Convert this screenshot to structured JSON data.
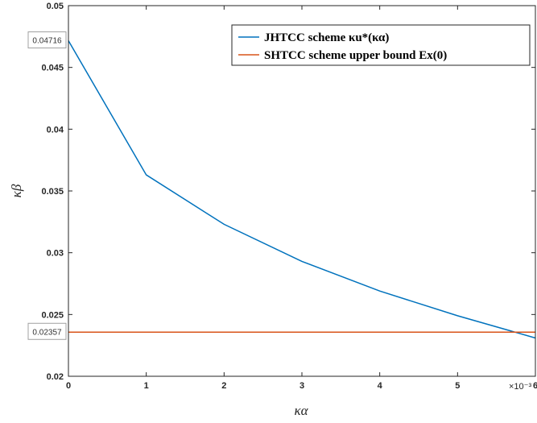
{
  "chart_data": {
    "type": "line",
    "xlabel": "κα",
    "ylabel": "κβ",
    "x_exponent_label": "×10⁻³",
    "xlim": [
      0,
      0.006
    ],
    "ylim": [
      0.02,
      0.05
    ],
    "xticks": [
      0,
      0.001,
      0.002,
      0.003,
      0.004,
      0.005,
      0.006
    ],
    "xtick_labels": [
      "0",
      "1",
      "2",
      "3",
      "4",
      "5",
      "6"
    ],
    "yticks": [
      0.02,
      0.025,
      0.03,
      0.035,
      0.04,
      0.045,
      0.05
    ],
    "ytick_labels": [
      "0.02",
      "0.025",
      "0.03",
      "0.035",
      "0.04",
      "0.045",
      "0.05"
    ],
    "grid": false,
    "legend_position": "top-right",
    "series": [
      {
        "name": "JHTCC scheme κu*(κα)",
        "color": "#0072BD",
        "x": [
          0,
          0.001,
          0.002,
          0.003,
          0.004,
          0.005,
          0.006
        ],
        "y": [
          0.04716,
          0.0363,
          0.0323,
          0.0293,
          0.0269,
          0.0249,
          0.0231
        ]
      },
      {
        "name": "SHTCC scheme upper bound Ex(0)",
        "color": "#D95319",
        "x": [
          0,
          0.006
        ],
        "y": [
          0.02357,
          0.02357
        ]
      }
    ],
    "annotations": [
      {
        "text": "0.04716",
        "y": 0.04716
      },
      {
        "text": "0.02357",
        "y": 0.02357
      }
    ]
  }
}
